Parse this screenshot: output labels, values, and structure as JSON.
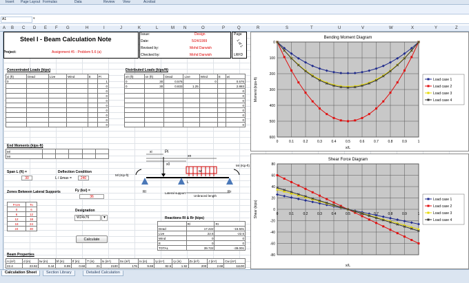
{
  "menu": [
    "Insert",
    "Page Layout",
    "Formulas",
    "Data",
    "Review",
    "View",
    "Acrobat"
  ],
  "namebox": "A1",
  "columns": [
    "A",
    "B",
    "C",
    "D",
    "E",
    "F",
    "G",
    "H",
    "I",
    "J",
    "K",
    "L",
    "M",
    "N",
    "O",
    "P",
    "Q",
    "R",
    "S",
    "T",
    "U",
    "V",
    "W",
    "X",
    "Y",
    "Z"
  ],
  "note": {
    "title": "Steel I - Beam Calculation Note",
    "project_label": "Project:",
    "project_value": "Assignment #5 - Problem 5.6 (a)",
    "issue_label": "Issue:",
    "issue_value": "Design",
    "date_label": "Date:",
    "date_value": "5/24/1999",
    "revised_label": "Revised by:",
    "revised_value": "Mohd Darwish",
    "checked_label": "Checked by:",
    "checked_value": "Mohd Darwish",
    "page_label": "Page",
    "page_value": "1 of 1",
    "method": "LRFD"
  },
  "conc": {
    "title": "Concentrated Loads (kips)",
    "headers": [
      "xi (ft)",
      "Dead",
      "Live",
      "Wind",
      "E",
      "Pi"
    ],
    "rows": [
      [
        "0",
        "",
        "",
        "",
        "",
        "1"
      ],
      [
        "",
        "",
        "",
        "",
        "",
        "0"
      ],
      [
        "",
        "",
        "",
        "",
        "",
        "0"
      ],
      [
        "",
        "",
        "",
        "",
        "",
        "0"
      ],
      [
        "",
        "",
        "",
        "",
        "",
        "0"
      ],
      [
        "",
        "",
        "",
        "",
        "",
        "0"
      ],
      [
        "",
        "",
        "",
        "",
        "",
        "0"
      ],
      [
        "",
        "",
        "",
        "",
        "",
        "0"
      ],
      [
        "",
        "",
        "",
        "",
        "",
        "0"
      ],
      [
        "",
        "",
        "",
        "",
        "",
        "0"
      ]
    ]
  },
  "dist": {
    "title": "Distributed Loads (kips/ft)",
    "headers": [
      "x0 (ft)",
      "xn (ft)",
      "Dead",
      "Live",
      "Wind",
      "E",
      "wi"
    ],
    "rows": [
      [
        "0",
        "30",
        "0.576",
        "",
        "0",
        "",
        "0.576"
      ],
      [
        "0",
        "30",
        "0.833",
        "1.25",
        "",
        "",
        "2.883"
      ],
      [
        "",
        "",
        "",
        "",
        "",
        "",
        "0"
      ],
      [
        "",
        "",
        "",
        "",
        "",
        "",
        "0"
      ],
      [
        "",
        "",
        "",
        "",
        "",
        "",
        "0"
      ],
      [
        "",
        "",
        "",
        "",
        "",
        "",
        "0"
      ],
      [
        "",
        "",
        "",
        "",
        "",
        "",
        "0"
      ],
      [
        "",
        "",
        "",
        "",
        "",
        "",
        "0"
      ],
      [
        "",
        "",
        "",
        "",
        "",
        "",
        "0"
      ],
      [
        "",
        "",
        "",
        "",
        "",
        "",
        "0"
      ]
    ]
  },
  "end_moments": {
    "title": "End Moments (kips-ft)",
    "rows": [
      "Ml",
      "Mr"
    ]
  },
  "span": {
    "label": "Span L (ft) =",
    "value": "30"
  },
  "deflection": {
    "label": "Deflection Condition",
    "expr": "L / Δmax =",
    "value": "240"
  },
  "zones": {
    "title": "Zones Between Lateral Supports",
    "headers": [
      "From",
      "To"
    ],
    "rows": [
      [
        "0",
        "6"
      ],
      [
        "6",
        "12"
      ],
      [
        "12",
        "18"
      ],
      [
        "18",
        "24"
      ],
      [
        "24",
        "30"
      ]
    ]
  },
  "fy": {
    "label": "Fy (ksi) =",
    "value": "36"
  },
  "designation": {
    "label": "Designation",
    "value": "W24x76",
    "arrow": "▼"
  },
  "calculate_label": "Calculate",
  "diagram": {
    "pi": "Pi",
    "xi": "xi",
    "x0": "x0",
    "xn": "xn",
    "wi": "wi",
    "ml": "Ml (Kip-ft)",
    "mr": "Mr (Kip-ft)",
    "rl": "Rl",
    "rr": "Rr",
    "l": "L",
    "lateral": "Lateral support",
    "unbraced": "Unbraced length"
  },
  "reactions": {
    "title": "Reactions Rl & Rr (kips)",
    "headers": [
      "",
      "Rl",
      "Rr"
    ],
    "rows": [
      [
        "Dead",
        "17.222",
        "-16.501"
      ],
      [
        "Live",
        "22.5",
        "-22.5"
      ],
      [
        "Wind",
        "0",
        "0"
      ],
      [
        "E",
        "0",
        "0"
      ],
      [
        "TOTAL",
        "39.722",
        "-39.001"
      ]
    ]
  },
  "beam": {
    "title": "Beam Properties",
    "headers": [
      "A (in²)",
      "d (in)",
      "tw (in)",
      "bf (in)",
      "tf (in)",
      "T (in)",
      "Ix (in⁴)",
      "Sx (in³)",
      "rx (in)",
      "Iy (in⁴)",
      "ry (in)",
      "Zx (in³)",
      "J (in⁴)",
      "Cw (in⁶)"
    ],
    "row": [
      "22.4",
      "23.92",
      "0.44",
      "8.99",
      "0.68",
      "21",
      "2100",
      "176",
      "9.69",
      "82.5",
      "1.92",
      "200",
      "2.68",
      "11100"
    ]
  },
  "tabs": [
    "Calculation Sheet",
    "Section Library",
    "Detailed Calculation"
  ],
  "chart_data": [
    {
      "type": "line",
      "title": "Bending Moment Diagram",
      "xlabel": "x/L",
      "ylabel": "Moment (kips-ft)",
      "xlim": [
        0,
        1
      ],
      "ylim": [
        0,
        600
      ],
      "y_inverted": true,
      "x_ticks": [
        0,
        0.1,
        0.2,
        0.3,
        0.4,
        0.5,
        0.6,
        0.7,
        0.8,
        0.9,
        1
      ],
      "y_ticks": [
        0,
        100,
        200,
        300,
        400,
        500,
        600
      ],
      "x": [
        0,
        0.05,
        0.1,
        0.15,
        0.2,
        0.25,
        0.3,
        0.35,
        0.4,
        0.45,
        0.5,
        0.55,
        0.6,
        0.65,
        0.7,
        0.75,
        0.8,
        0.85,
        0.9,
        0.95,
        1
      ],
      "series": [
        {
          "name": "Load case 1",
          "color": "#1f2b8c",
          "marker": "diamond",
          "values": [
            0,
            39,
            73,
            103,
            129,
            151,
            168,
            181,
            190,
            196,
            197,
            196,
            190,
            181,
            168,
            151,
            129,
            103,
            73,
            39,
            0
          ]
        },
        {
          "name": "Load case 2",
          "color": "#e01010",
          "marker": "square",
          "values": [
            0,
            95,
            180,
            255,
            320,
            375,
            420,
            455,
            480,
            495,
            500,
            495,
            480,
            455,
            420,
            375,
            320,
            255,
            180,
            95,
            0
          ]
        },
        {
          "name": "Load case 3",
          "color": "#e6d800",
          "marker": "triangle",
          "values": [
            0,
            53,
            101,
            143,
            180,
            211,
            236,
            256,
            270,
            278,
            281,
            278,
            270,
            256,
            236,
            211,
            180,
            143,
            101,
            53,
            0
          ]
        },
        {
          "name": "Load case 4",
          "color": "#333333",
          "marker": "x",
          "values": [
            0,
            54,
            103,
            146,
            184,
            216,
            242,
            262,
            276,
            285,
            288,
            285,
            276,
            262,
            242,
            216,
            184,
            146,
            103,
            54,
            0
          ]
        }
      ],
      "legend": "right",
      "grid": true
    },
    {
      "type": "line",
      "title": "Shear Force Diagram",
      "xlabel": "x/L",
      "ylabel": "Shear (kips)",
      "xlim": [
        0,
        1
      ],
      "ylim": [
        -80,
        80
      ],
      "x_ticks": [
        0,
        0.1,
        0.2,
        0.3,
        0.4,
        0.5,
        0.6,
        0.7,
        0.8,
        0.9,
        1
      ],
      "y_ticks": [
        80,
        60,
        40,
        20,
        0,
        -20,
        -40,
        -60,
        -80
      ],
      "x": [
        0,
        0.05,
        0.1,
        0.15,
        0.2,
        0.25,
        0.3,
        0.35,
        0.4,
        0.45,
        0.5,
        0.55,
        0.6,
        0.65,
        0.7,
        0.75,
        0.8,
        0.85,
        0.9,
        0.95,
        1
      ],
      "series": [
        {
          "name": "Load case 1",
          "color": "#1f2b8c",
          "marker": "diamond",
          "values": [
            26,
            23.4,
            20.8,
            18.2,
            15.6,
            13,
            10.4,
            7.8,
            5.2,
            2.6,
            0,
            -2.6,
            -5.2,
            -7.8,
            -10.4,
            -13,
            -15.6,
            -18.2,
            -20.8,
            -23.4,
            -26
          ]
        },
        {
          "name": "Load case 2",
          "color": "#e01010",
          "marker": "square",
          "values": [
            60,
            54,
            48,
            42,
            36,
            30,
            24,
            18,
            12,
            6,
            0,
            -6,
            -12,
            -18,
            -24,
            -30,
            -36,
            -42,
            -48,
            -54,
            -60
          ]
        },
        {
          "name": "Load case 3",
          "color": "#e6d800",
          "marker": "triangle",
          "values": [
            35,
            31.5,
            28,
            24.5,
            21,
            17.5,
            14,
            10.5,
            7,
            3.5,
            0,
            -3.5,
            -7,
            -10.5,
            -14,
            -17.5,
            -21,
            -24.5,
            -28,
            -31.5,
            -35
          ]
        },
        {
          "name": "Load case 4",
          "color": "#333333",
          "marker": "x",
          "values": [
            38,
            34.2,
            30.4,
            26.6,
            22.8,
            19,
            15.2,
            11.4,
            7.6,
            3.8,
            0,
            -3.8,
            -7.6,
            -11.4,
            -15.2,
            -19,
            -22.8,
            -26.6,
            -30.4,
            -34.2,
            -38
          ]
        }
      ],
      "legend": "right",
      "grid": true
    }
  ]
}
